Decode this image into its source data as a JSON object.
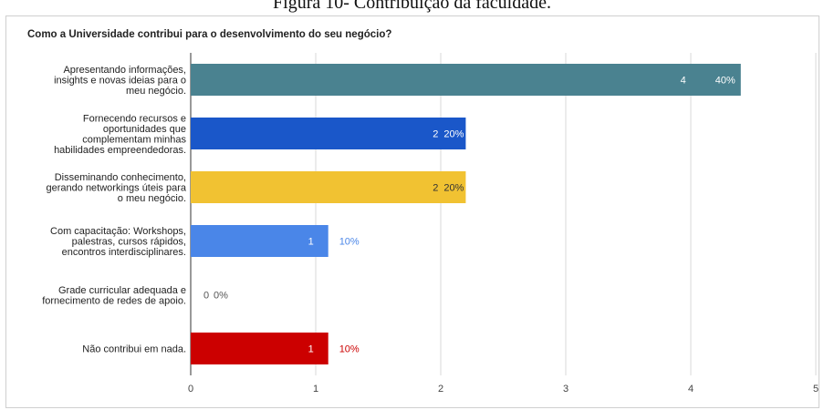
{
  "caption": "Figura 10- Contribuição da faculdade.",
  "chart_data": {
    "type": "bar",
    "orientation": "horizontal",
    "title": "Como a Universidade contribui para o desenvolvimento do seu negócio?",
    "categories": [
      [
        "Apresentando informações,",
        "insights e novas ideias para o",
        "meu negócio."
      ],
      [
        "Fornecendo recursos e",
        "oportunidades que",
        "complementam minhas",
        "habilidades empreendedoras."
      ],
      [
        "Disseminando conhecimento,",
        "gerando networkings úteis para",
        "o meu negócio."
      ],
      [
        "Com capacitação: Workshops,",
        "palestras, cursos rápidos,",
        "encontros interdisciplinares."
      ],
      [
        "Grade curricular adequada e",
        "fornecimento de redes de apoio."
      ],
      [
        "Não contribui em nada."
      ]
    ],
    "values": [
      4.4,
      2.2,
      2.2,
      1.1,
      0,
      1.1
    ],
    "count_labels": [
      "4",
      "2",
      "2",
      "1",
      "0",
      "1"
    ],
    "percent_labels": [
      "40%",
      "20%",
      "20%",
      "10%",
      "0%",
      "10%"
    ],
    "colors": [
      "#4a8290",
      "#1a57c9",
      "#f1c232",
      "#4a86e8",
      "#7f7f7f",
      "#cc0000"
    ],
    "percent_colors": [
      "#ffffff",
      "#ffffff",
      "#333333",
      "#4a86e8",
      "#555555",
      "#cc0000"
    ],
    "xlim": [
      0,
      5
    ],
    "xticks": [
      "0",
      "1",
      "2",
      "3",
      "4",
      "5"
    ],
    "grid": true
  }
}
